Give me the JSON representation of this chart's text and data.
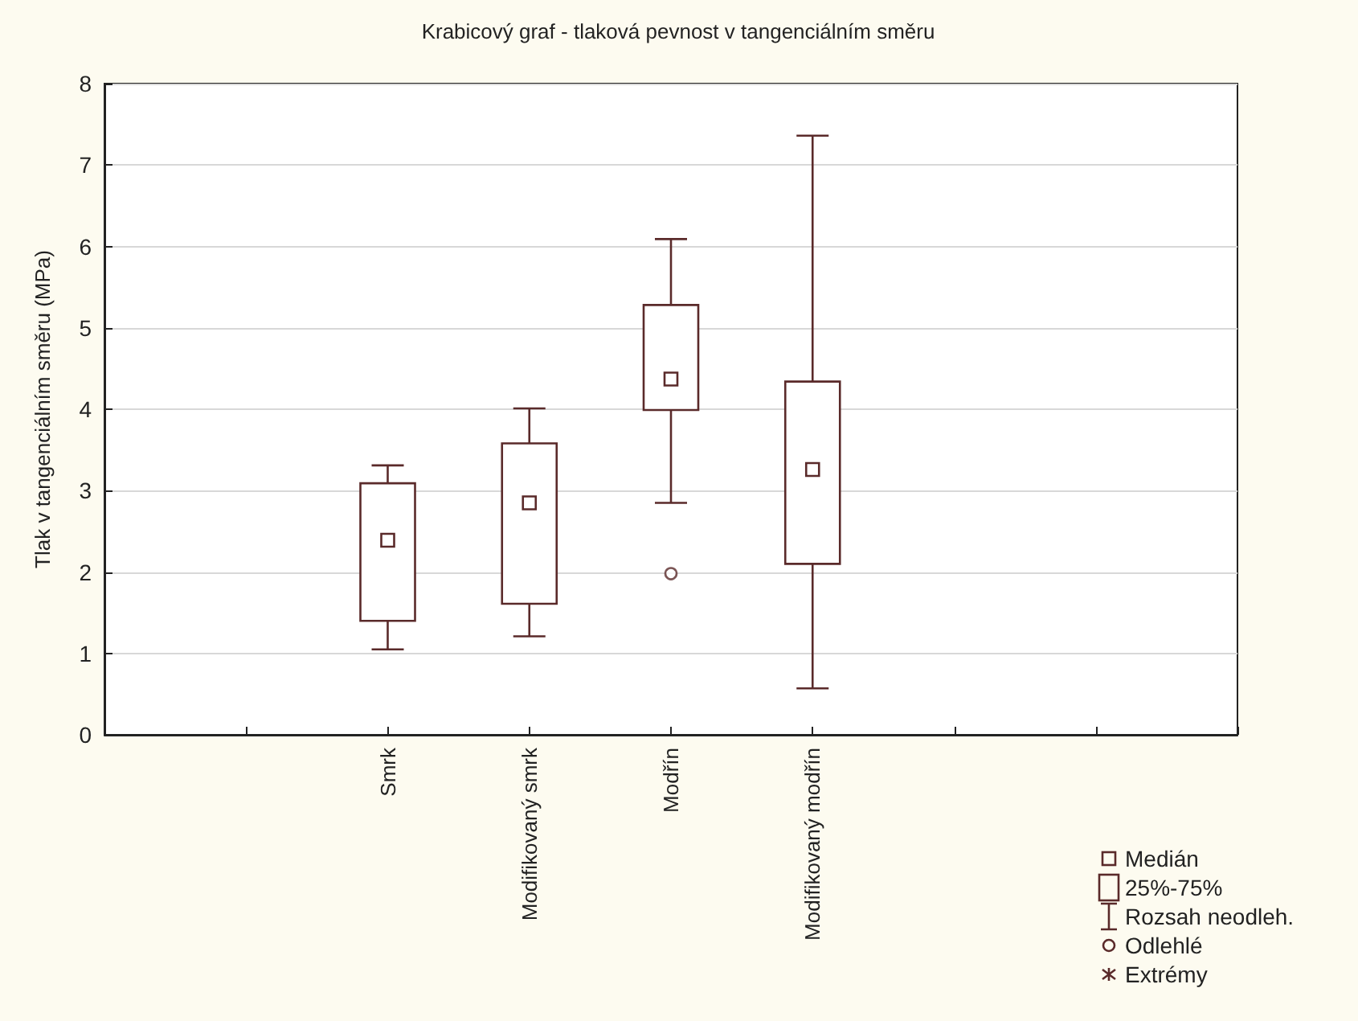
{
  "chart_data": {
    "type": "box",
    "title": "Krabicový graf - tlaková pevnost v tangenciálním směru",
    "ylabel": "Tlak v tangenciálním směru (MPa)",
    "categories": [
      null,
      null,
      "Smrk",
      "Modifikovaný smrk",
      "Modřín",
      "Modifikovaný modřín",
      null,
      null,
      null
    ],
    "series": [
      {
        "type": "box",
        "color": "#5a2a2a",
        "boxes": [
          null,
          null,
          {
            "low": 1.05,
            "q1": 1.4,
            "median": 2.39,
            "q3": 3.09,
            "high": 3.31
          },
          {
            "low": 1.21,
            "q1": 1.61,
            "median": 2.85,
            "q3": 3.58,
            "high": 4.01
          },
          {
            "low": 2.85,
            "q1": 3.99,
            "median": 4.37,
            "q3": 5.28,
            "high": 6.09
          },
          {
            "low": 0.57,
            "q1": 2.1,
            "median": 3.26,
            "q3": 4.34,
            "high": 7.36
          },
          null,
          null,
          null
        ]
      },
      {
        "type": "scatter",
        "color": "#5a2a2a",
        "x": [
          "Modřín"
        ],
        "values": [
          1.98
        ]
      }
    ],
    "marker": "circle",
    "ylim": [
      0,
      8
    ],
    "yticks": [
      0,
      1,
      2,
      3,
      4,
      5,
      6,
      7,
      8
    ],
    "grid": "y",
    "annotations": [
      "Medián",
      "25%-75%",
      "Rozsah neodleh.",
      "Odlehlé",
      "Extrémy"
    ]
  }
}
